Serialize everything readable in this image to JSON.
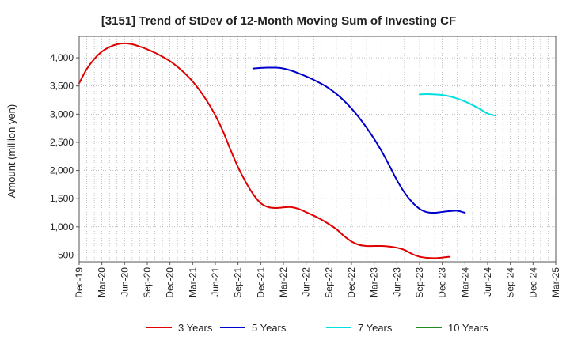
{
  "chart_data": {
    "type": "line",
    "title": "[3151]  Trend of StDev of 12-Month Moving Sum of Investing CF",
    "xlabel": "",
    "ylabel": "Amount (million yen)",
    "ylim": [
      380,
      4380
    ],
    "yticks": [
      500,
      1000,
      1500,
      2000,
      2500,
      3000,
      3500,
      4000
    ],
    "ytick_labels": [
      "500",
      "1,000",
      "1,500",
      "2,000",
      "2,500",
      "3,000",
      "3,500",
      "4,000"
    ],
    "x_start": "2019-12",
    "x_end": "2025-03",
    "xtick_labels": [
      "Dec-19",
      "Mar-20",
      "Jun-20",
      "Sep-20",
      "Dec-20",
      "Mar-21",
      "Jun-21",
      "Sep-21",
      "Dec-21",
      "Mar-22",
      "Jun-22",
      "Sep-22",
      "Dec-22",
      "Mar-23",
      "Jun-23",
      "Sep-23",
      "Dec-23",
      "Mar-24",
      "Jun-24",
      "Sep-24",
      "Dec-24",
      "Mar-25"
    ],
    "grid": true,
    "legend_position": "bottom",
    "series": [
      {
        "name": "3 Years",
        "color": "#e00000",
        "start": "2019-12",
        "values": [
          3550,
          3800,
          3980,
          4110,
          4190,
          4240,
          4255,
          4240,
          4200,
          4150,
          4090,
          4020,
          3940,
          3840,
          3720,
          3580,
          3410,
          3210,
          2980,
          2700,
          2370,
          2060,
          1800,
          1580,
          1420,
          1350,
          1335,
          1345,
          1350,
          1320,
          1260,
          1200,
          1130,
          1050,
          960,
          840,
          740,
          680,
          660,
          660,
          660,
          650,
          630,
          590,
          520,
          470,
          450,
          445,
          455,
          470
        ]
      },
      {
        "name": "5 Years",
        "color": "#0000cc",
        "start": "2021-11",
        "values": [
          3810,
          3820,
          3825,
          3825,
          3810,
          3775,
          3725,
          3670,
          3610,
          3540,
          3460,
          3360,
          3240,
          3100,
          2940,
          2760,
          2560,
          2340,
          2090,
          1830,
          1610,
          1440,
          1320,
          1260,
          1250,
          1265,
          1280,
          1285,
          1250
        ]
      },
      {
        "name": "7 Years",
        "color": "#00e0e0",
        "start": "2023-09",
        "values": [
          3350,
          3355,
          3350,
          3340,
          3315,
          3275,
          3225,
          3160,
          3090,
          3010,
          2975
        ]
      },
      {
        "name": "10 Years",
        "color": "#228b22",
        "start": "2025-03",
        "values": []
      }
    ]
  }
}
